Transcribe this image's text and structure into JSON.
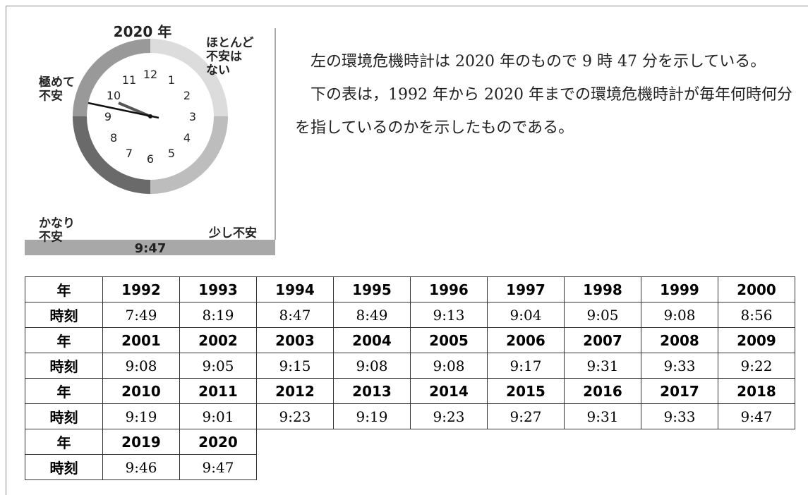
{
  "figure": {
    "year_label": "2020 年",
    "label_top_left": "極めて\n不安",
    "label_top_right": "ほとんど\n不安は\nない",
    "label_bottom_left": "かなり\n不安",
    "label_bottom_right": "少し不安",
    "dial": [
      "12",
      "1",
      "2",
      "3",
      "4",
      "5",
      "6",
      "7",
      "8",
      "9",
      "10",
      "11"
    ],
    "time": "9:47"
  },
  "paragraphs": [
    "左の環境危機時計は 2020 年のもので 9 時 47 分を示している。",
    "下の表は，1992 年から 2020 年までの環境危機時計が毎年何時何分を指しているのかを示したものである。"
  ],
  "table": {
    "year_header": "年",
    "time_header": "時刻",
    "groups": [
      {
        "years": [
          "1992",
          "1993",
          "1994",
          "1995",
          "1996",
          "1997",
          "1998",
          "1999",
          "2000"
        ],
        "times": [
          "7:49",
          "8:19",
          "8:47",
          "8:49",
          "9:13",
          "9:04",
          "9:05",
          "9:08",
          "8:56"
        ]
      },
      {
        "years": [
          "2001",
          "2002",
          "2003",
          "2004",
          "2005",
          "2006",
          "2007",
          "2008",
          "2009"
        ],
        "times": [
          "9:08",
          "9:05",
          "9:15",
          "9:08",
          "9:08",
          "9:17",
          "9:31",
          "9:33",
          "9:22"
        ]
      },
      {
        "years": [
          "2010",
          "2011",
          "2012",
          "2013",
          "2014",
          "2015",
          "2016",
          "2017",
          "2018"
        ],
        "times": [
          "9:19",
          "9:01",
          "9:23",
          "9:19",
          "9:23",
          "9:27",
          "9:31",
          "9:33",
          "9:47"
        ]
      },
      {
        "years": [
          "2019",
          "2020"
        ],
        "times": [
          "9:46",
          "9:47"
        ]
      }
    ]
  }
}
